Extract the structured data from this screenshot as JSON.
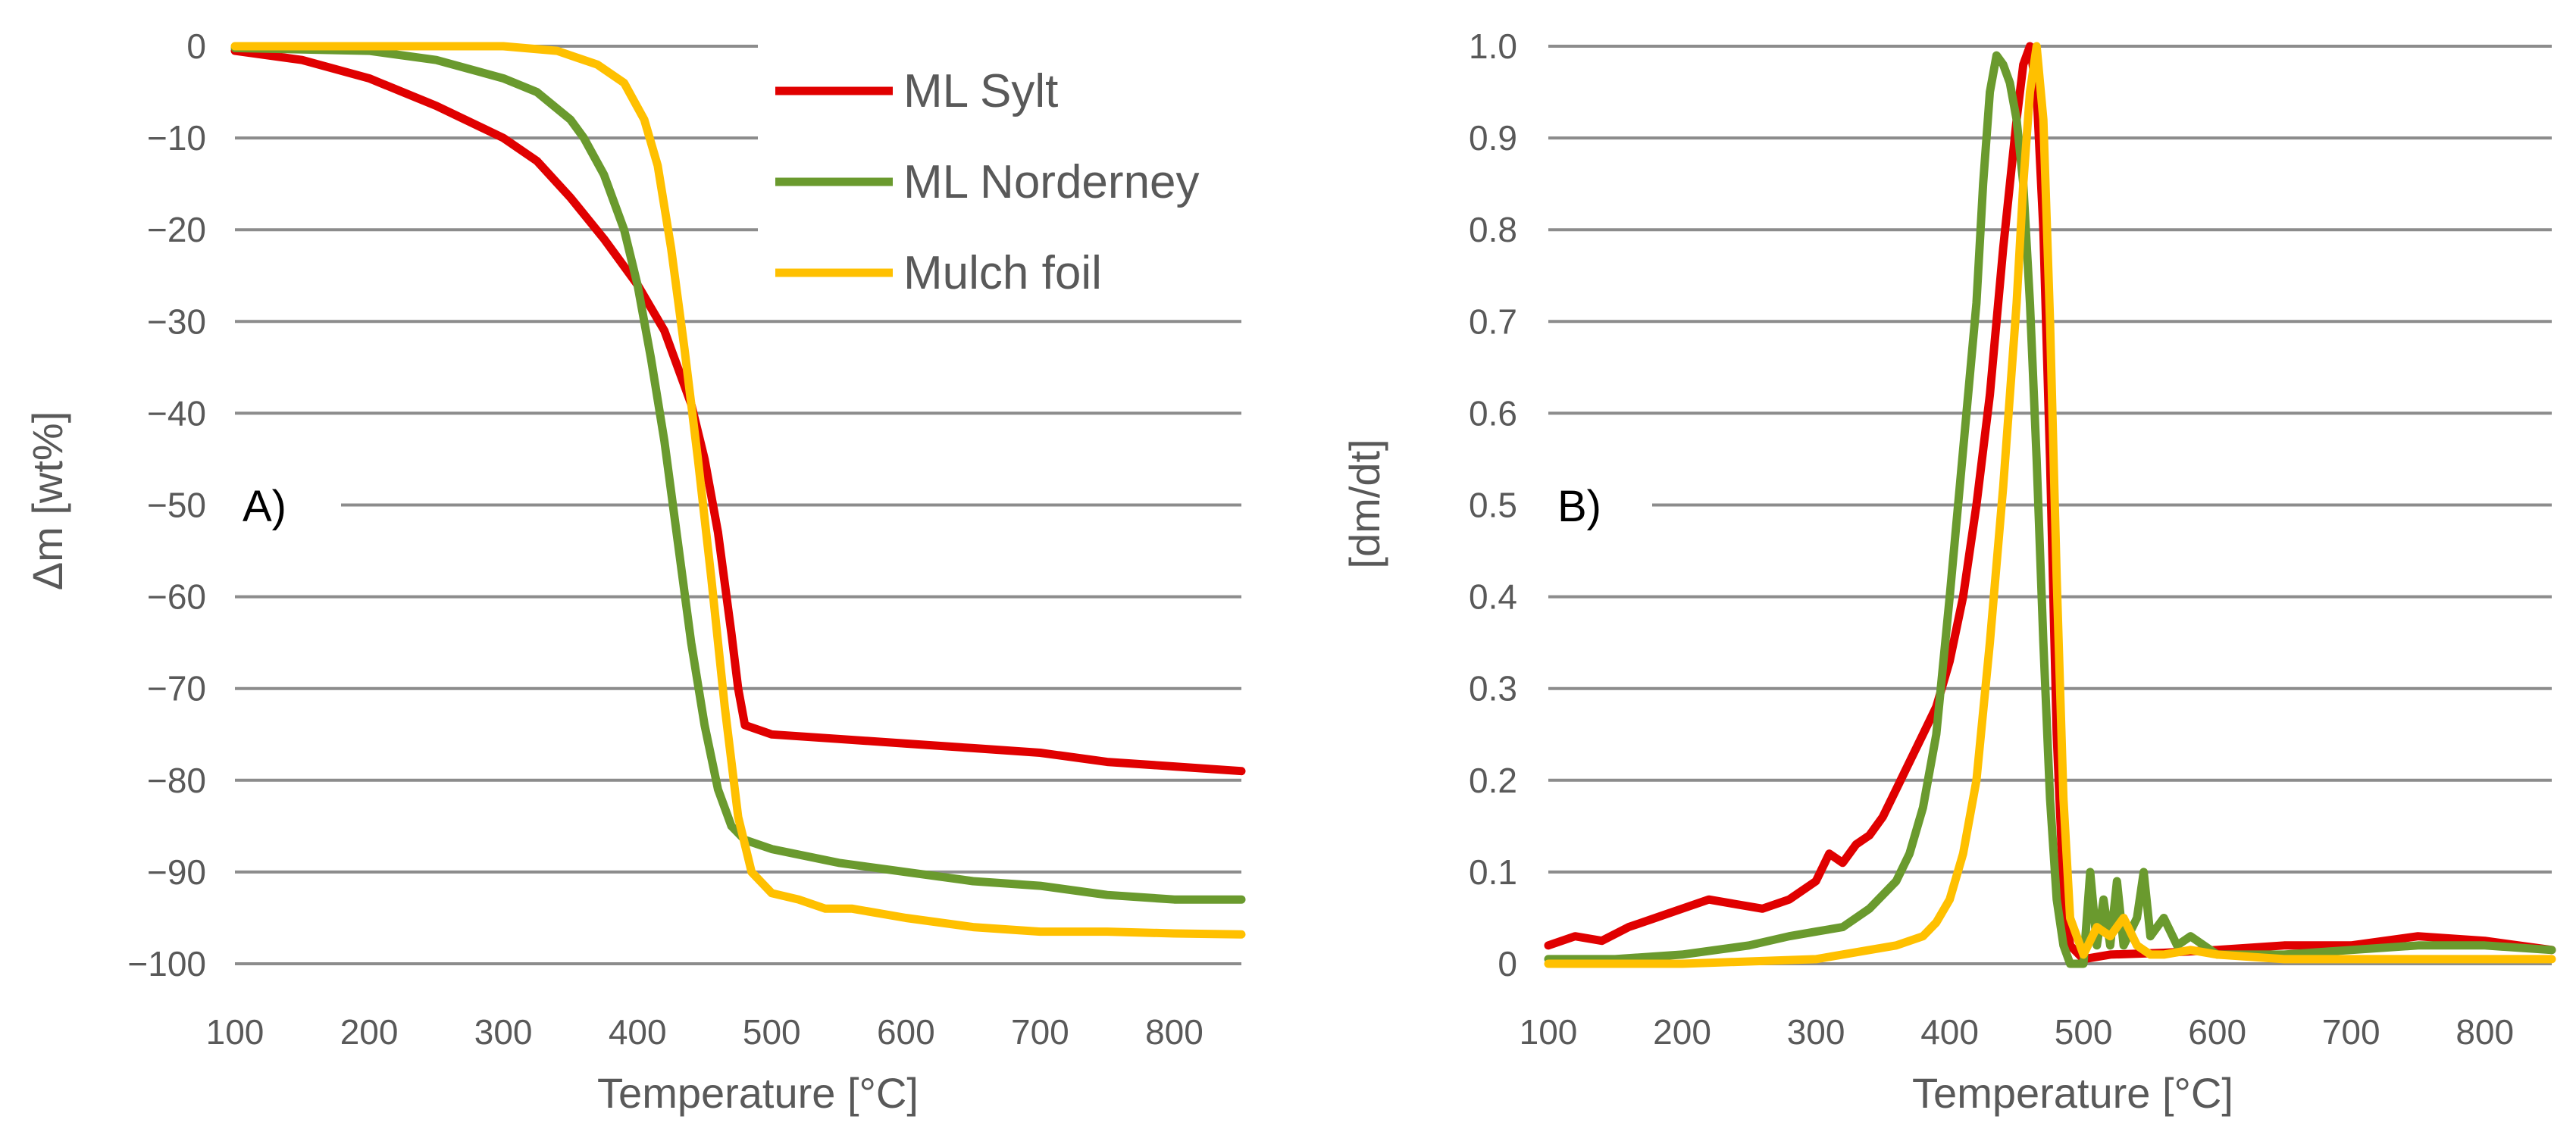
{
  "colors": {
    "ml_sylt": "#e00000",
    "ml_norderney": "#6a9a2e",
    "mulch_foil": "#ffc000",
    "grid": "#8c8c8c",
    "text": "#595959"
  },
  "legend": [
    "ML Sylt",
    "ML Norderney",
    "Mulch foil"
  ],
  "chart_data": [
    {
      "type": "line",
      "panel_label": "A)",
      "title": "",
      "xlabel": "Temperature [°C]",
      "ylabel": "Δm [wt%]",
      "xlim": [
        100,
        850
      ],
      "ylim": [
        -100,
        0
      ],
      "xticks": [
        "100",
        "200",
        "300",
        "400",
        "500",
        "600",
        "700",
        "800"
      ],
      "yticks": [
        "0",
        "−10",
        "−20",
        "−30",
        "−40",
        "−50",
        "−60",
        "−70",
        "−80",
        "−90",
        "−100"
      ],
      "grid": true,
      "legend_position": "top-right",
      "series": [
        {
          "name": "ML Sylt",
          "color": "#e00000",
          "x": [
            100,
            150,
            200,
            250,
            300,
            325,
            350,
            375,
            400,
            420,
            440,
            450,
            460,
            470,
            475,
            480,
            500,
            550,
            600,
            650,
            700,
            750,
            800,
            850
          ],
          "y": [
            -0.5,
            -1.5,
            -3.5,
            -6.5,
            -10,
            -12.5,
            -16.5,
            -21,
            -26,
            -31,
            -39,
            -45,
            -53,
            -64,
            -70,
            -74,
            -75,
            -75.5,
            -76,
            -76.5,
            -77,
            -78,
            -78.5,
            -79
          ]
        },
        {
          "name": "ML Norderney",
          "color": "#6a9a2e",
          "x": [
            100,
            200,
            250,
            300,
            325,
            350,
            360,
            375,
            390,
            400,
            410,
            420,
            430,
            440,
            450,
            460,
            470,
            480,
            500,
            550,
            600,
            650,
            700,
            750,
            800,
            850
          ],
          "y": [
            -0.2,
            -0.5,
            -1.5,
            -3.5,
            -5,
            -8,
            -10,
            -14,
            -20,
            -26,
            -34,
            -43,
            -54,
            -65,
            -74,
            -81,
            -85,
            -86.5,
            -87.5,
            -89,
            -90,
            -91,
            -91.5,
            -92.5,
            -93,
            -93
          ]
        },
        {
          "name": "Mulch foil",
          "color": "#ffc000",
          "x": [
            100,
            300,
            340,
            370,
            390,
            405,
            415,
            425,
            435,
            445,
            455,
            465,
            475,
            485,
            500,
            520,
            540,
            560,
            600,
            650,
            700,
            750,
            800,
            850
          ],
          "y": [
            0,
            0,
            -0.5,
            -2,
            -4,
            -8,
            -13,
            -22,
            -33,
            -45,
            -58,
            -72,
            -84,
            -90,
            -92.3,
            -93,
            -94,
            -94,
            -95,
            -96,
            -96.5,
            -96.5,
            -96.7,
            -96.8
          ]
        }
      ]
    },
    {
      "type": "line",
      "panel_label": "B)",
      "title": "",
      "xlabel": "Temperature [°C]",
      "ylabel": "[dm/dt]",
      "xlim": [
        100,
        850
      ],
      "ylim": [
        0,
        1.0
      ],
      "xticks": [
        "100",
        "200",
        "300",
        "400",
        "500",
        "600",
        "700",
        "800"
      ],
      "yticks": [
        "0",
        "0.1",
        "0.2",
        "0.3",
        "0.4",
        "0.5",
        "0.6",
        "0.7",
        "0.8",
        "0.9",
        "1.0"
      ],
      "grid": true,
      "series": [
        {
          "name": "ML Sylt",
          "color": "#e00000",
          "x": [
            100,
            120,
            140,
            160,
            180,
            200,
            220,
            240,
            260,
            280,
            300,
            310,
            320,
            330,
            340,
            350,
            360,
            370,
            380,
            390,
            400,
            410,
            420,
            430,
            440,
            450,
            455,
            460,
            465,
            470,
            475,
            480,
            485,
            490,
            500,
            520,
            560,
            600,
            650,
            700,
            750,
            800,
            850
          ],
          "y": [
            0.02,
            0.03,
            0.025,
            0.04,
            0.05,
            0.06,
            0.07,
            0.065,
            0.06,
            0.07,
            0.09,
            0.12,
            0.11,
            0.13,
            0.14,
            0.16,
            0.19,
            0.22,
            0.25,
            0.28,
            0.33,
            0.4,
            0.5,
            0.62,
            0.78,
            0.92,
            0.98,
            1.0,
            0.95,
            0.8,
            0.55,
            0.25,
            0.08,
            0.02,
            0.005,
            0.01,
            0.012,
            0.015,
            0.02,
            0.02,
            0.03,
            0.025,
            0.015
          ]
        },
        {
          "name": "ML Norderney",
          "color": "#6a9a2e",
          "x": [
            100,
            150,
            200,
            250,
            280,
            300,
            320,
            340,
            360,
            370,
            380,
            390,
            400,
            410,
            420,
            425,
            430,
            435,
            440,
            445,
            450,
            455,
            460,
            465,
            470,
            475,
            480,
            485,
            490,
            500,
            505,
            510,
            515,
            520,
            525,
            530,
            540,
            545,
            550,
            560,
            570,
            580,
            600,
            650,
            700,
            750,
            800,
            850
          ],
          "y": [
            0.005,
            0.005,
            0.01,
            0.02,
            0.03,
            0.035,
            0.04,
            0.06,
            0.09,
            0.12,
            0.17,
            0.25,
            0.4,
            0.56,
            0.72,
            0.85,
            0.95,
            0.99,
            0.98,
            0.96,
            0.92,
            0.85,
            0.72,
            0.55,
            0.35,
            0.18,
            0.07,
            0.02,
            0.0,
            0.0,
            0.1,
            0.02,
            0.07,
            0.02,
            0.09,
            0.02,
            0.05,
            0.1,
            0.03,
            0.05,
            0.02,
            0.03,
            0.01,
            0.01,
            0.015,
            0.02,
            0.02,
            0.015
          ]
        },
        {
          "name": "Mulch foil",
          "color": "#ffc000",
          "x": [
            100,
            200,
            300,
            340,
            360,
            380,
            390,
            400,
            410,
            420,
            430,
            440,
            450,
            455,
            460,
            465,
            470,
            475,
            480,
            485,
            490,
            500,
            510,
            520,
            530,
            540,
            550,
            560,
            580,
            600,
            650,
            700,
            750,
            800,
            850
          ],
          "y": [
            0.0,
            0.0,
            0.005,
            0.015,
            0.02,
            0.03,
            0.045,
            0.07,
            0.12,
            0.2,
            0.35,
            0.52,
            0.72,
            0.85,
            0.95,
            1.0,
            0.92,
            0.7,
            0.42,
            0.18,
            0.05,
            0.01,
            0.04,
            0.03,
            0.05,
            0.02,
            0.01,
            0.01,
            0.015,
            0.01,
            0.005,
            0.005,
            0.005,
            0.005,
            0.005
          ]
        }
      ]
    }
  ]
}
